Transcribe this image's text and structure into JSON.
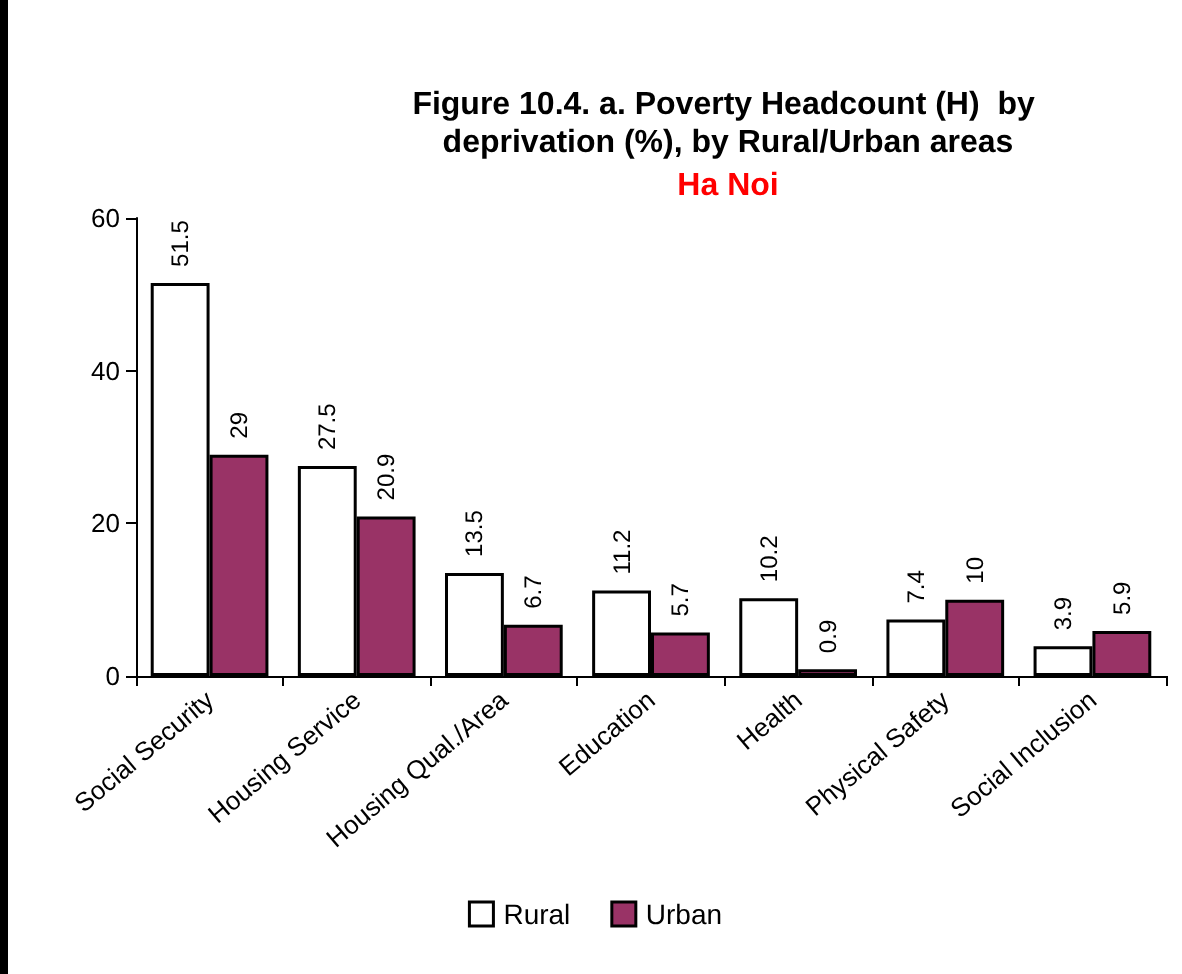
{
  "chart_data": {
    "type": "bar",
    "title": "Figure 10.4. a. Poverty Headcount (H)  by deprivation (%), by Rural/Urban areas",
    "subtitle": "Ha Noi",
    "categories": [
      "Social Security",
      "Housing Service",
      "Housing Qual./Area",
      "Education",
      "Health",
      "Physical Safety",
      "Social Inclusion"
    ],
    "series": [
      {
        "name": "Rural",
        "color": "#ffffff",
        "values": [
          51.5,
          27.5,
          13.5,
          11.2,
          10.2,
          7.4,
          3.9
        ]
      },
      {
        "name": "Urban",
        "color": "#993366",
        "values": [
          29,
          20.9,
          6.7,
          5.7,
          0.9,
          10,
          5.9
        ]
      }
    ],
    "ylim": [
      0,
      60
    ],
    "yticks": [
      0,
      20,
      40,
      60
    ],
    "grid": false,
    "legend": "bottom",
    "data_labels": true
  }
}
